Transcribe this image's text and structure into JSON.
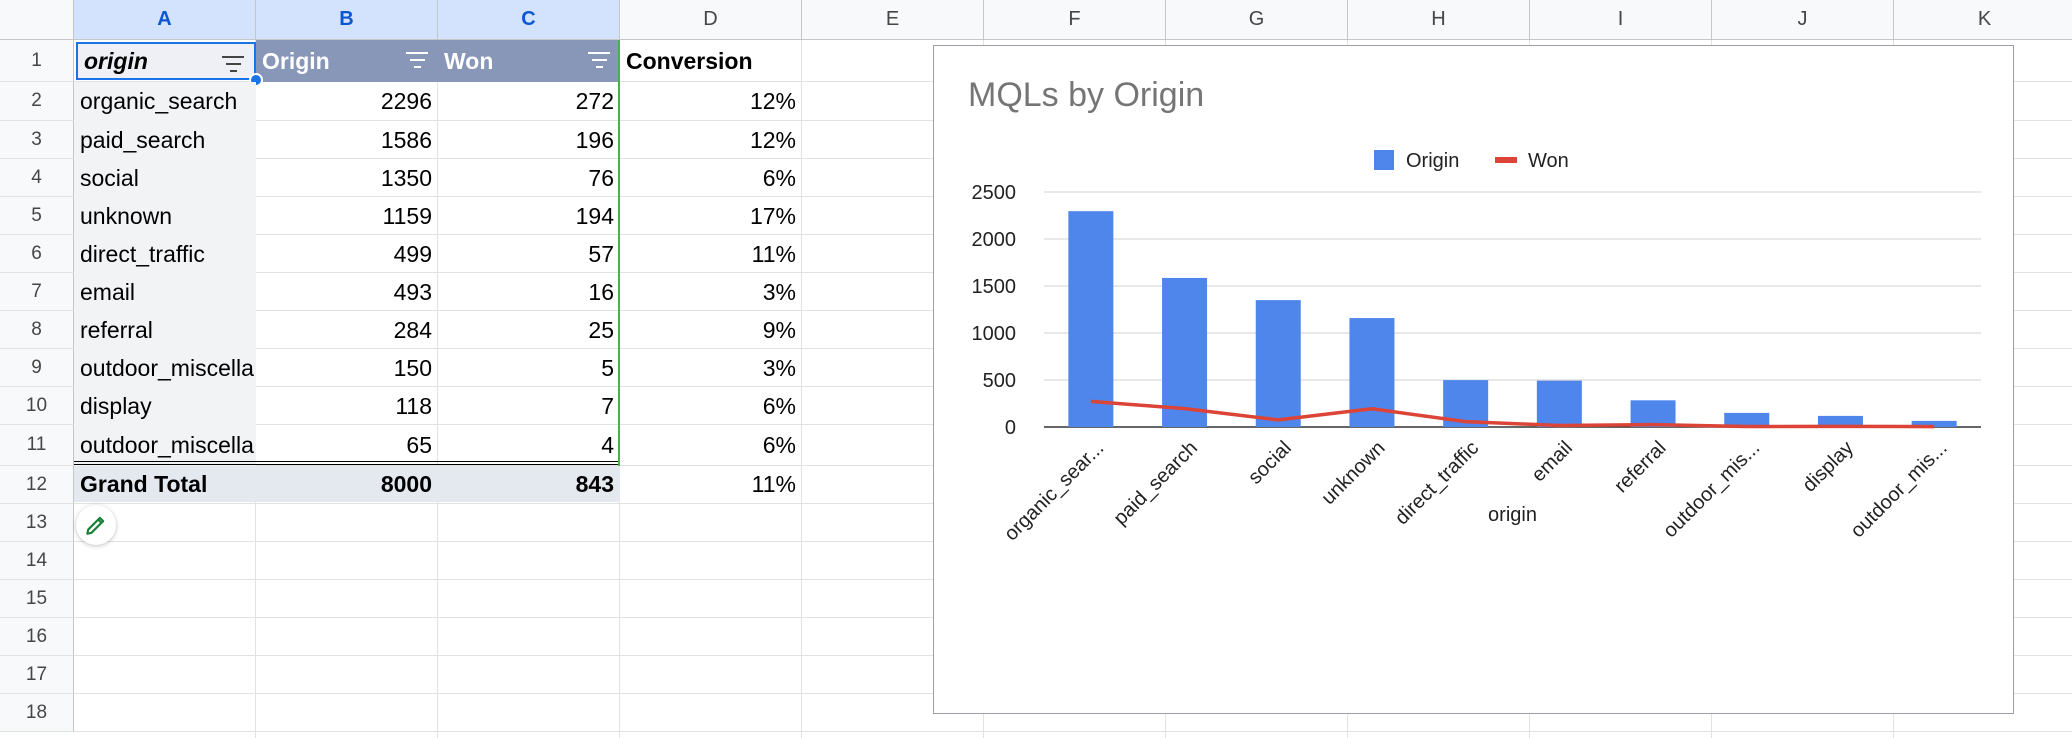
{
  "columns": [
    "A",
    "B",
    "C",
    "D",
    "E",
    "F",
    "G",
    "H",
    "I",
    "J",
    "K"
  ],
  "rows": [
    "1",
    "2",
    "3",
    "4",
    "5",
    "6",
    "7",
    "8",
    "9",
    "10",
    "11",
    "12",
    "13",
    "14",
    "15",
    "16",
    "17",
    "18"
  ],
  "pivot": {
    "headers": {
      "origin": "origin",
      "origin_count": "Origin",
      "won": "Won",
      "conversion": "Conversion"
    },
    "records": [
      {
        "origin": "organic_search",
        "count": "2296",
        "won": "272",
        "conversion": "12%"
      },
      {
        "origin": "paid_search",
        "count": "1586",
        "won": "196",
        "conversion": "12%"
      },
      {
        "origin": "social",
        "count": "1350",
        "won": "76",
        "conversion": "6%"
      },
      {
        "origin": "unknown",
        "count": "1159",
        "won": "194",
        "conversion": "17%"
      },
      {
        "origin": "direct_traffic",
        "count": "499",
        "won": "57",
        "conversion": "11%"
      },
      {
        "origin": "email",
        "count": "493",
        "won": "16",
        "conversion": "3%"
      },
      {
        "origin": "referral",
        "count": "284",
        "won": "25",
        "conversion": "9%"
      },
      {
        "origin": "outdoor_miscella",
        "count": "150",
        "won": "5",
        "conversion": "3%"
      },
      {
        "origin": "display",
        "count": "118",
        "won": "7",
        "conversion": "6%"
      },
      {
        "origin": "outdoor_miscella",
        "count": "65",
        "won": "4",
        "conversion": "6%"
      }
    ],
    "total": {
      "label": "Grand Total",
      "count": "8000",
      "won": "843",
      "conversion": "11%"
    }
  },
  "colors": {
    "bar": "#4f86ec",
    "line": "#db4437",
    "header": "#8896b8",
    "accent": "#1a73e8"
  },
  "icons": {
    "filter": "filter-icon",
    "edit": "pencil-icon"
  },
  "chart_data": {
    "type": "bar",
    "title": "MQLs by Origin",
    "xlabel": "origin",
    "ylabel": "",
    "ylim": [
      0,
      2500
    ],
    "yticks": [
      0,
      500,
      1000,
      1500,
      2000,
      2500
    ],
    "legend_position": "top",
    "categories": [
      "organic_sear...",
      "paid_search",
      "social",
      "unknown",
      "direct_traffic",
      "email",
      "referral",
      "outdoor_mis...",
      "display",
      "outdoor_mis..."
    ],
    "series": [
      {
        "name": "Origin",
        "kind": "bar",
        "values": [
          2296,
          1586,
          1350,
          1159,
          499,
          493,
          284,
          150,
          118,
          65
        ]
      },
      {
        "name": "Won",
        "kind": "line",
        "values": [
          272,
          196,
          76,
          194,
          57,
          16,
          25,
          5,
          7,
          4
        ]
      }
    ]
  }
}
